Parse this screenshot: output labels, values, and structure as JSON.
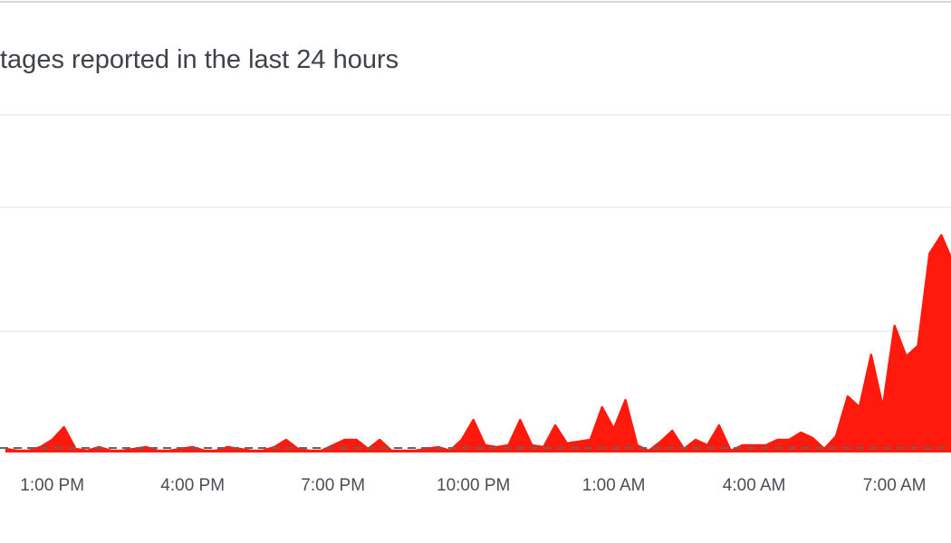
{
  "chart_data": {
    "type": "area",
    "title": "tages reported in the last 24 hours",
    "categories": [
      null,
      null,
      null,
      null,
      "1:00 PM",
      null,
      null,
      null,
      null,
      null,
      null,
      null,
      null,
      null,
      null,
      null,
      "4:00 PM",
      null,
      null,
      null,
      null,
      null,
      null,
      null,
      null,
      null,
      null,
      null,
      "7:00 PM",
      null,
      null,
      null,
      null,
      null,
      null,
      null,
      null,
      null,
      null,
      null,
      "10:00 PM",
      null,
      null,
      null,
      null,
      null,
      null,
      null,
      null,
      null,
      null,
      null,
      "1:00 AM",
      null,
      null,
      null,
      null,
      null,
      null,
      null,
      null,
      null,
      null,
      null,
      "4:00 AM",
      null,
      null,
      null,
      null,
      null,
      null,
      null,
      null,
      null,
      null,
      null,
      "7:00 AM",
      null,
      null,
      null,
      null,
      null
    ],
    "values": [
      2,
      1,
      1,
      3,
      7,
      14,
      2,
      1,
      3,
      1,
      1,
      2,
      3,
      1,
      1,
      2,
      3,
      1,
      1,
      3,
      2,
      1,
      1,
      3,
      7,
      2,
      1,
      1,
      4,
      7,
      7,
      2,
      7,
      1,
      1,
      1,
      2,
      3,
      1,
      7,
      18,
      4,
      3,
      4,
      18,
      4,
      3,
      15,
      5,
      6,
      7,
      25,
      13,
      29,
      4,
      1,
      6,
      12,
      2,
      7,
      4,
      15,
      1,
      4,
      4,
      4,
      7,
      7,
      11,
      8,
      2,
      9,
      31,
      25,
      54,
      25,
      70,
      53,
      59,
      110,
      120,
      105
    ],
    "color": "#ff1a0d",
    "baseline": 2.5,
    "ylim": [
      0,
      200
    ]
  }
}
